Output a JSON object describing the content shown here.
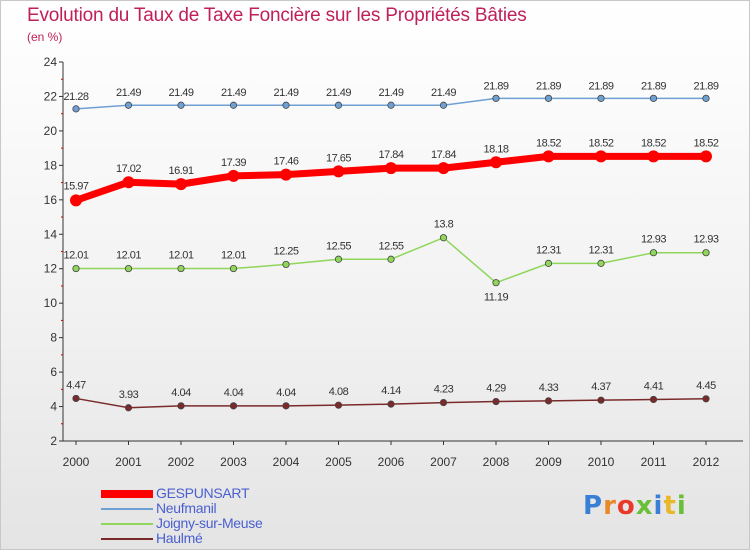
{
  "header": {
    "title": "Evolution du Taux de Taxe Foncière sur les Propriétés Bâties",
    "unit": "(en %)"
  },
  "logo": {
    "text": "Proxiti"
  },
  "chart_data": {
    "type": "line",
    "title": "Evolution du Taux de Taxe Foncière sur les Propriétés Bâties",
    "ylabel": "(en %)",
    "xlabel": "",
    "x": [
      "2000",
      "2001",
      "2002",
      "2003",
      "2004",
      "2005",
      "2006",
      "2007",
      "2008",
      "2009",
      "2010",
      "2011",
      "2012"
    ],
    "ylim": [
      2,
      24
    ],
    "yticks": [
      2,
      4,
      6,
      8,
      10,
      12,
      14,
      16,
      18,
      20,
      22,
      24
    ],
    "grid": false,
    "legend": "bottom-left",
    "series": [
      {
        "name": "GESPUNSART",
        "color": "#ff0000",
        "values": [
          15.97,
          17.02,
          16.91,
          17.39,
          17.46,
          17.65,
          17.84,
          17.84,
          18.18,
          18.52,
          18.52,
          18.52,
          18.52
        ],
        "labels": [
          "15.97",
          "17.02",
          "16.91",
          "17.39",
          "17.46",
          "17.65",
          "17.84",
          "17.84",
          "18.18",
          "18.52",
          "18.52",
          "18.52",
          "18.52"
        ]
      },
      {
        "name": "Neufmanil",
        "color": "#6fa0d4",
        "values": [
          21.28,
          21.49,
          21.49,
          21.49,
          21.49,
          21.49,
          21.49,
          21.49,
          21.89,
          21.89,
          21.89,
          21.89,
          21.89
        ],
        "labels": [
          "21.28",
          "21.49",
          "21.49",
          "21.49",
          "21.49",
          "21.49",
          "21.49",
          "21.49",
          "21.89",
          "21.89",
          "21.89",
          "21.89",
          "21.89"
        ]
      },
      {
        "name": "Joigny-sur-Meuse",
        "color": "#8fd65a",
        "values": [
          12.01,
          12.01,
          12.01,
          12.01,
          12.25,
          12.55,
          12.55,
          13.8,
          11.19,
          12.31,
          12.31,
          12.93,
          12.93
        ],
        "labels": [
          "12.01",
          "12.01",
          "12.01",
          "12.01",
          "12.25",
          "12.55",
          "12.55",
          "13.8",
          "11.19",
          "12.31",
          "12.31",
          "12.93",
          "12.93"
        ]
      },
      {
        "name": "Haulmé",
        "color": "#7a2a2a",
        "values": [
          4.47,
          3.93,
          4.04,
          4.04,
          4.04,
          4.08,
          4.14,
          4.23,
          4.29,
          4.33,
          4.37,
          4.41,
          4.45
        ],
        "labels": [
          "4.47",
          "3.93",
          "4.04",
          "4.04",
          "4.04",
          "4.08",
          "4.14",
          "4.23",
          "4.29",
          "4.33",
          "4.37",
          "4.41",
          "4.45"
        ]
      }
    ]
  }
}
